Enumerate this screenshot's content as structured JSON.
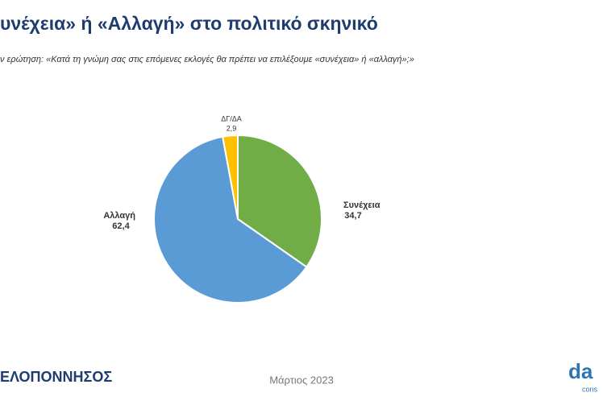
{
  "chart_data": {
    "type": "pie",
    "title": "υνέχεια» ή «Αλλαγή» στο πολιτικό σκηνικό",
    "subtitle": "ν ερώτηση: «Κατά τη γνώμη σας στις επόμενες εκλογές θα πρέπει να επιλέξουμε «συνέχεια» ή «αλλαγή»;»",
    "categories": [
      "Συνέχεια",
      "Αλλαγή",
      "ΔΓ/ΔΑ"
    ],
    "values": [
      34.7,
      62.4,
      2.9
    ],
    "value_labels": [
      "34,7",
      "62,4",
      "2,9"
    ],
    "colors": [
      "#70ad47",
      "#5b9bd5",
      "#ffc000"
    ]
  },
  "footer": {
    "left": "ΕΛΟΠΟΝΝΗΣΟΣ",
    "center": "Μάρτιος 2023",
    "logo": "da",
    "logo_sub": "cons"
  }
}
